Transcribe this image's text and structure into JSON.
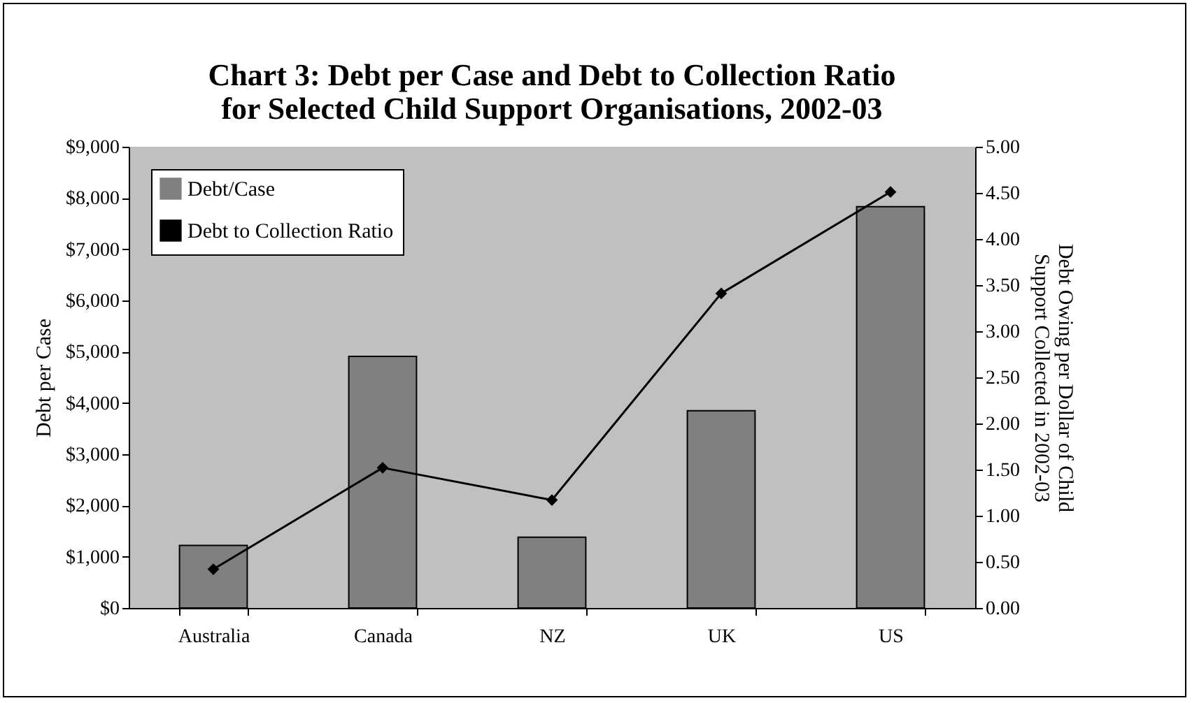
{
  "chart_data": {
    "type": "bar",
    "title": "Chart 3: Debt per Case and Debt to Collection Ratio\nfor Selected Child Support Organisations, 2002-03",
    "ylabel": "Debt per Case",
    "y2label": "Debt Owing per Dollar of Child\nSupport Collected in 2002-03",
    "categories": [
      "Australia",
      "Canada",
      "NZ",
      "UK",
      "US"
    ],
    "series": [
      {
        "name": "Debt/Case",
        "color": "#808080",
        "values": [
          1220,
          4910,
          1380,
          3850,
          7830
        ]
      },
      {
        "name": "Debt to Collection Ratio",
        "type": "line",
        "axis": "y2",
        "color": "#000000",
        "marker": "diamond",
        "line_style": "solid",
        "values": [
          0.42,
          1.52,
          1.17,
          3.41,
          4.51
        ]
      }
    ],
    "ylim": [
      0,
      9000
    ],
    "yticks": [
      {
        "value": 0,
        "label": "$0"
      },
      {
        "value": 1000,
        "label": "$1,000"
      },
      {
        "value": 2000,
        "label": "$2,000"
      },
      {
        "value": 3000,
        "label": "$3,000"
      },
      {
        "value": 4000,
        "label": "$4,000"
      },
      {
        "value": 5000,
        "label": "$5,000"
      },
      {
        "value": 6000,
        "label": "$6,000"
      },
      {
        "value": 7000,
        "label": "$7,000"
      },
      {
        "value": 8000,
        "label": "$8,000"
      },
      {
        "value": 9000,
        "label": "$9,000"
      }
    ],
    "y2lim": [
      0,
      5
    ],
    "y2ticks": [
      {
        "value": 0,
        "label": "0.00"
      },
      {
        "value": 0.5,
        "label": "0.50"
      },
      {
        "value": 1,
        "label": "1.00"
      },
      {
        "value": 1.5,
        "label": "1.50"
      },
      {
        "value": 2,
        "label": "2.00"
      },
      {
        "value": 2.5,
        "label": "2.50"
      },
      {
        "value": 3,
        "label": "3.00"
      },
      {
        "value": 3.5,
        "label": "3.50"
      },
      {
        "value": 4,
        "label": "4.00"
      },
      {
        "value": 4.5,
        "label": "4.50"
      },
      {
        "value": 5,
        "label": "5.00"
      }
    ],
    "grid": false,
    "legend": "top left"
  }
}
